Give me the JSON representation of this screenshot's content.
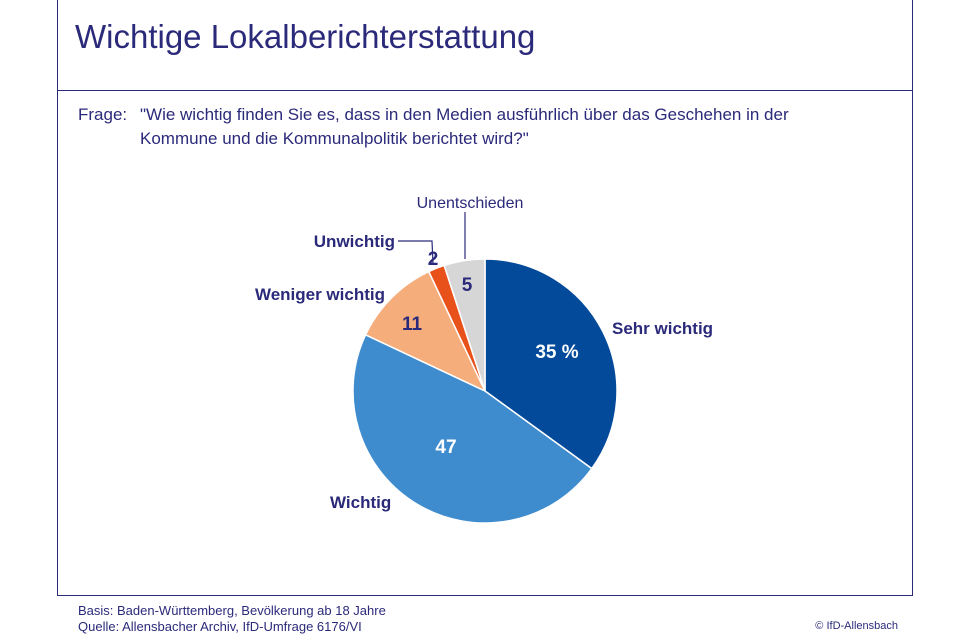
{
  "header": {
    "title": "Wichtige Lokalberichterstattung",
    "question_label": "Frage:",
    "question_text": "\"Wie wichtig finden Sie es, dass in den Medien ausführlich über das Geschehen in der Kommune und die Kommunalpolitik berichtet wird?\""
  },
  "footer": {
    "basis": "Basis: Baden-Württemberg, Bevölkerung ab 18 Jahre",
    "source": "Quelle: Allensbacher Archiv, IfD-Umfrage 6176/VI",
    "copyright": "© IfD-Allensbach"
  },
  "colors": {
    "text": "#2b2a7a",
    "sehr_wichtig": "#044a9b",
    "wichtig": "#3e8ccd",
    "weniger_wichtig": "#f5ad7c",
    "unwichtig": "#e8521a",
    "unentschieden": "#d6d6d6"
  },
  "chart_data": {
    "type": "pie",
    "title": "Wichtige Lokalberichterstattung",
    "slices": [
      {
        "label": "Sehr wichtig",
        "value": 35,
        "value_label": "35 %",
        "color": "#044a9b",
        "value_color": "#ffffff"
      },
      {
        "label": "Wichtig",
        "value": 47,
        "value_label": "47",
        "color": "#3e8ccd",
        "value_color": "#ffffff"
      },
      {
        "label": "Weniger wichtig",
        "value": 11,
        "value_label": "11",
        "color": "#f5ad7c",
        "value_color": "#2b2a7a"
      },
      {
        "label": "Unwichtig",
        "value": 2,
        "value_label": "2",
        "color": "#e8521a",
        "value_color": "#2b2a7a"
      },
      {
        "label": "Unentschieden",
        "value": 5,
        "value_label": "5",
        "color": "#d6d6d6",
        "value_color": "#2b2a7a"
      }
    ],
    "start": "12 o'clock",
    "direction": "clockwise"
  }
}
